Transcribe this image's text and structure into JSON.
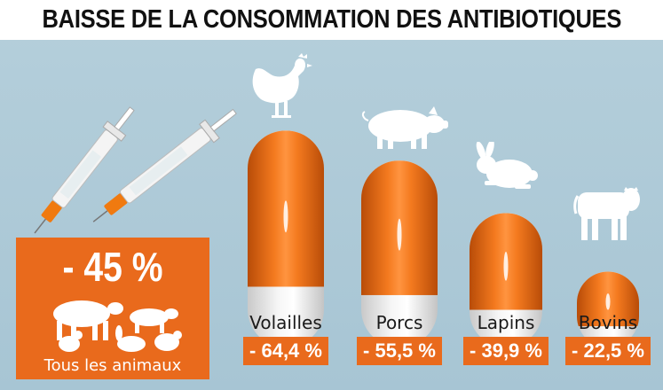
{
  "title": "BAISSE DE LA CONSOMMATION DES ANTIBIOTIQUES",
  "total": {
    "value": "- 45 %",
    "label": "Tous les animaux",
    "icon": "farm-animals-icon"
  },
  "colors": {
    "accent": "#e96a1c",
    "background": "#a9c7d6",
    "capsule_white": "#f4f4f4"
  },
  "chart_data": {
    "type": "bar",
    "categories": [
      "Volailles",
      "Porcs",
      "Lapins",
      "Bovins"
    ],
    "values": [
      -64.4,
      -55.5,
      -39.9,
      -22.5
    ],
    "value_labels": [
      "- 64,4 %",
      "- 55,5 %",
      "- 39,9 %",
      "- 22,5 %"
    ],
    "icons": [
      "rooster-icon",
      "pig-icon",
      "rabbit-icon",
      "cow-icon"
    ],
    "bar_style": "capsule"
  }
}
